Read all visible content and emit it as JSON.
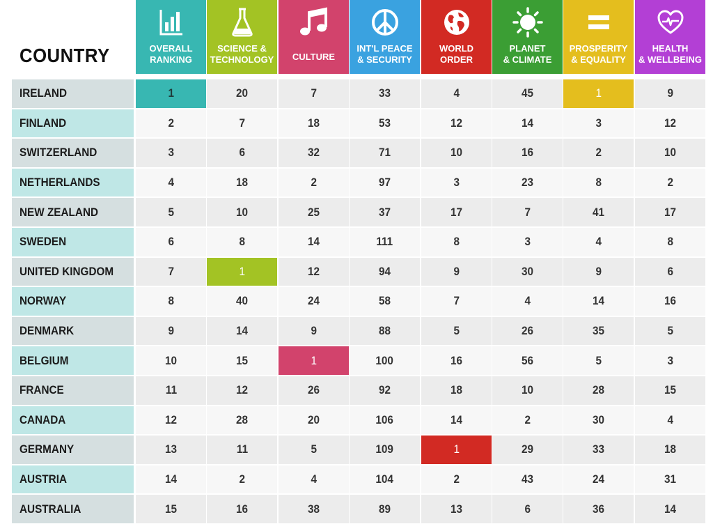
{
  "table": {
    "corner_label": "COUNTRY",
    "columns": [
      {
        "label": "OVERALL\nRANKING",
        "color": "#38b7b2",
        "icon": "bar-chart-icon"
      },
      {
        "label": "SCIENCE &\nTECHNOLOGY",
        "color": "#a3c324",
        "icon": "flask-icon"
      },
      {
        "label": "CULTURE",
        "color": "#d2436c",
        "icon": "music-note-icon"
      },
      {
        "label": "INT'L PEACE\n& SECURITY",
        "color": "#3aa2e0",
        "icon": "peace-icon"
      },
      {
        "label": "WORLD\nORDER",
        "color": "#d22a23",
        "icon": "globe-icon"
      },
      {
        "label": "PLANET\n& CLIMATE",
        "color": "#3b9e34",
        "icon": "sun-icon"
      },
      {
        "label": "PROSPERITY\n& EQUALITY",
        "color": "#e4be1e",
        "icon": "equals-icon"
      },
      {
        "label": "HEALTH\n& WELLBEING",
        "color": "#b33fd5",
        "icon": "heart-pulse-icon"
      }
    ]
  },
  "chart_data": {
    "type": "table",
    "title": "",
    "columns": [
      "OVERALL RANKING",
      "SCIENCE & TECHNOLOGY",
      "CULTURE",
      "INT'L PEACE & SECURITY",
      "WORLD ORDER",
      "PLANET & CLIMATE",
      "PROSPERITY & EQUALITY",
      "HEALTH & WELLBEING"
    ],
    "rows": [
      {
        "country": "IRELAND",
        "values": [
          1,
          20,
          7,
          33,
          4,
          45,
          1,
          9
        ]
      },
      {
        "country": "FINLAND",
        "values": [
          2,
          7,
          18,
          53,
          12,
          14,
          3,
          12
        ]
      },
      {
        "country": "SWITZERLAND",
        "values": [
          3,
          6,
          32,
          71,
          10,
          16,
          2,
          10
        ]
      },
      {
        "country": "NETHERLANDS",
        "values": [
          4,
          18,
          2,
          97,
          3,
          23,
          8,
          2
        ]
      },
      {
        "country": "NEW ZEALAND",
        "values": [
          5,
          10,
          25,
          37,
          17,
          7,
          41,
          17
        ]
      },
      {
        "country": "SWEDEN",
        "values": [
          6,
          8,
          14,
          111,
          8,
          3,
          4,
          8
        ]
      },
      {
        "country": "UNITED KINGDOM",
        "values": [
          7,
          1,
          12,
          94,
          9,
          30,
          9,
          6
        ]
      },
      {
        "country": "NORWAY",
        "values": [
          8,
          40,
          24,
          58,
          7,
          4,
          14,
          16
        ]
      },
      {
        "country": "DENMARK",
        "values": [
          9,
          14,
          9,
          88,
          5,
          26,
          35,
          5
        ]
      },
      {
        "country": "BELGIUM",
        "values": [
          10,
          15,
          1,
          100,
          16,
          56,
          5,
          3
        ]
      },
      {
        "country": "FRANCE",
        "values": [
          11,
          12,
          26,
          92,
          18,
          10,
          28,
          15
        ]
      },
      {
        "country": "CANADA",
        "values": [
          12,
          28,
          20,
          106,
          14,
          2,
          30,
          4
        ]
      },
      {
        "country": "GERMANY",
        "values": [
          13,
          11,
          5,
          109,
          1,
          29,
          33,
          18
        ]
      },
      {
        "country": "AUSTRIA",
        "values": [
          14,
          2,
          4,
          104,
          2,
          43,
          24,
          31
        ]
      },
      {
        "country": "AUSTRALIA",
        "values": [
          15,
          16,
          38,
          89,
          13,
          6,
          36,
          14
        ]
      }
    ]
  },
  "colors": {
    "country_cell_odd": "#d5dfe0",
    "country_cell_even": "#bfe7e6",
    "row_odd": "#ececec",
    "row_even": "#f7f7f7"
  }
}
